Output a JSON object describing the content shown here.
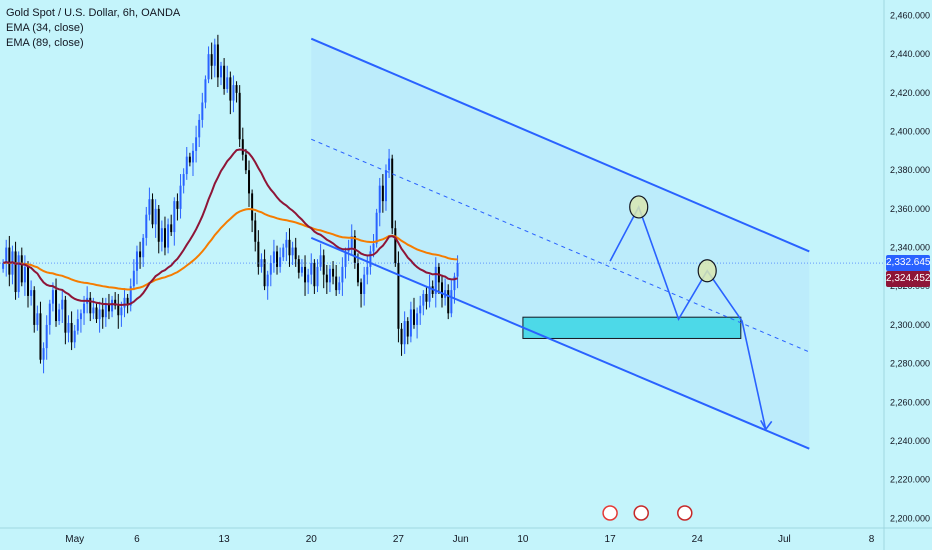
{
  "legend": {
    "symbol": "Gold Spot / U.S. Dollar, 6h, OANDA",
    "ema1": "EMA (34, close)",
    "ema2": "EMA (89, close)"
  },
  "colors": {
    "background": "#c4f4fb",
    "bull": "#2962ff",
    "bear": "#000000",
    "ema34": "#8e1537",
    "ema89": "#f57c00",
    "channel": "#2962ff",
    "zone": "#4dd9e8",
    "tag1": "#2962ff",
    "tag2": "#8e1537"
  },
  "price_tags": {
    "last": "2,332.645",
    "ema": "2,324.452"
  },
  "chart_data": {
    "type": "candlestick",
    "title": "Gold Spot / U.S. Dollar, 6h, OANDA",
    "ylim": [
      2195,
      2468
    ],
    "y_ticks": [
      "2,200.000",
      "2,220.000",
      "2,240.000",
      "2,260.000",
      "2,280.000",
      "2,300.000",
      "2,320.000",
      "2,340.000",
      "2,360.000",
      "2,380.000",
      "2,400.000",
      "2,420.000",
      "2,440.000",
      "2,460.000"
    ],
    "y_tick_values": [
      2200,
      2220,
      2240,
      2260,
      2280,
      2300,
      2320,
      2340,
      2360,
      2380,
      2400,
      2420,
      2440,
      2460
    ],
    "x_ticks": [
      "May",
      "6",
      "13",
      "20",
      "27",
      "Jun",
      "10",
      "17",
      "24",
      "Jul",
      "8"
    ],
    "x_tick_days": [
      1,
      6,
      13,
      20,
      27,
      32,
      37,
      44,
      51,
      58,
      65
    ],
    "day_range": [
      -5,
      66
    ],
    "candles_start_day": -4.75,
    "candle_step_days": 0.25,
    "closes": [
      2332,
      2340,
      2326,
      2338,
      2317,
      2336,
      2322,
      2330,
      2315,
      2318,
      2300,
      2306,
      2282,
      2288,
      2300,
      2311,
      2318,
      2302,
      2308,
      2313,
      2296,
      2301,
      2291,
      2297,
      2303,
      2306,
      2311,
      2314,
      2306,
      2309,
      2303,
      2308,
      2304,
      2311,
      2307,
      2313,
      2310,
      2305,
      2309,
      2314,
      2310,
      2320,
      2328,
      2338,
      2335,
      2345,
      2357,
      2365,
      2352,
      2360,
      2343,
      2350,
      2340,
      2352,
      2348,
      2364,
      2360,
      2372,
      2378,
      2387,
      2384,
      2390,
      2397,
      2406,
      2415,
      2427,
      2440,
      2434,
      2445,
      2428,
      2434,
      2422,
      2428,
      2416,
      2424,
      2420,
      2396,
      2388,
      2380,
      2368,
      2354,
      2343,
      2330,
      2334,
      2320,
      2326,
      2332,
      2338,
      2330,
      2335,
      2340,
      2344,
      2336,
      2340,
      2334,
      2327,
      2330,
      2322,
      2326,
      2332,
      2320,
      2330,
      2336,
      2326,
      2322,
      2329,
      2325,
      2318,
      2322,
      2330,
      2338,
      2340,
      2346,
      2332,
      2322,
      2316,
      2326,
      2330,
      2338,
      2342,
      2358,
      2372,
      2364,
      2380,
      2386,
      2350,
      2332,
      2298,
      2290,
      2302,
      2294,
      2308,
      2300,
      2306,
      2310,
      2316,
      2312,
      2320,
      2316,
      2330,
      2322,
      2314,
      2318,
      2306,
      2318,
      2325,
      2332
    ],
    "channel_upper": [
      [
        20,
        2448
      ],
      [
        60,
        2338
      ]
    ],
    "channel_lower": [
      [
        20,
        2345
      ],
      [
        60,
        2236
      ]
    ],
    "channel_mid": [
      [
        20,
        2396
      ],
      [
        60,
        2286
      ]
    ],
    "demand_zone": {
      "x": [
        37,
        54.5
      ],
      "y": [
        2293,
        2304
      ]
    },
    "projection_path": [
      [
        44,
        2333
      ],
      [
        46.3,
        2361
      ],
      [
        49.5,
        2303
      ],
      [
        51.8,
        2328
      ],
      [
        54.6,
        2302
      ],
      [
        56.5,
        2246
      ]
    ],
    "circles": [
      [
        46.3,
        2361
      ],
      [
        51.8,
        2328
      ]
    ],
    "event_days": [
      44,
      46.5,
      50
    ]
  }
}
